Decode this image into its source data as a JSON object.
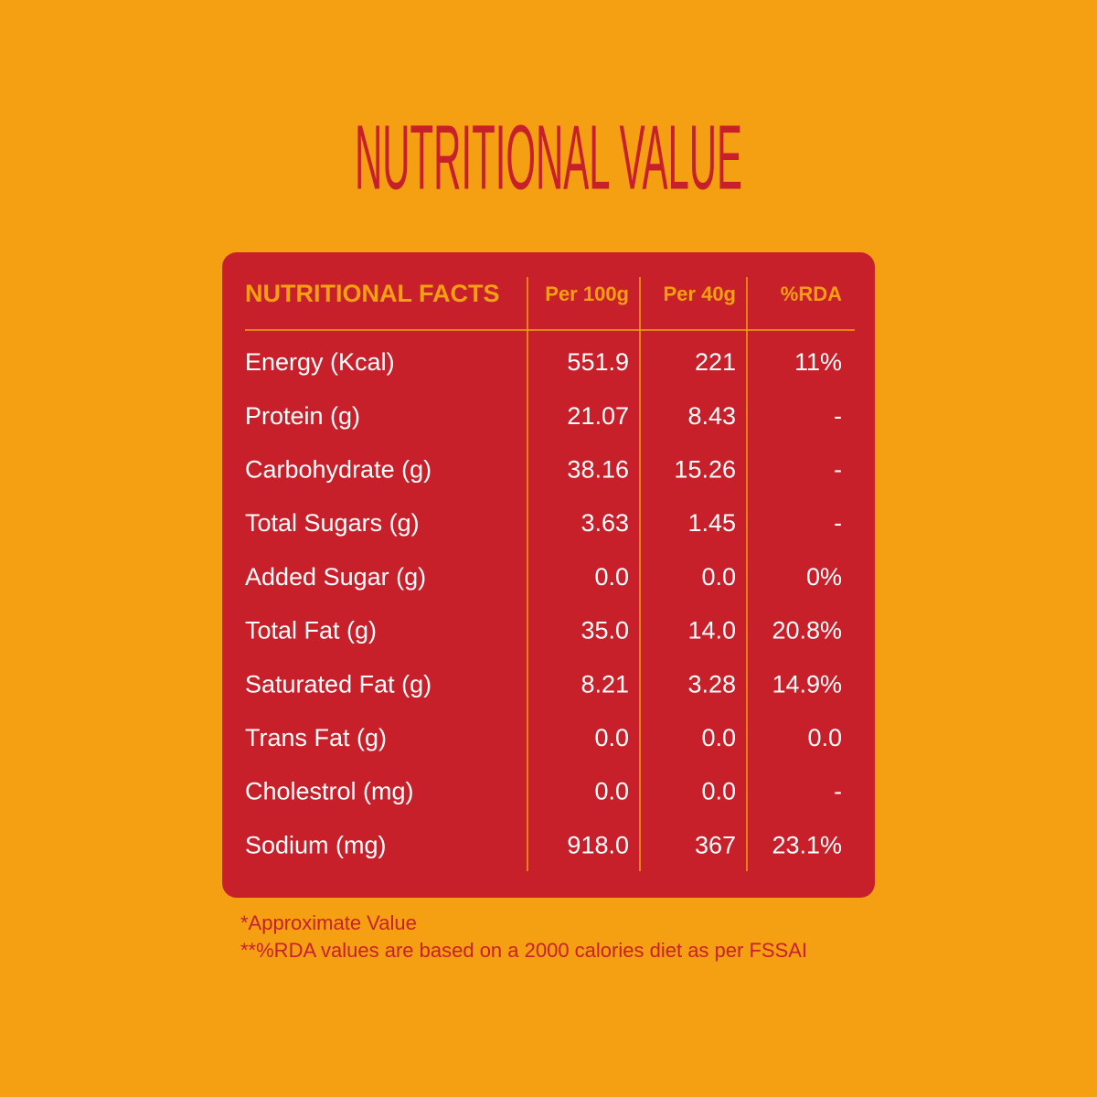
{
  "title": "NUTRITIONAL VALUE",
  "table": {
    "headers": [
      "NUTRITIONAL FACTS",
      "Per 100g",
      "Per 40g",
      "%RDA"
    ],
    "rows": [
      [
        "Energy (Kcal)",
        "551.9",
        "221",
        "11%"
      ],
      [
        "Protein (g)",
        "21.07",
        "8.43",
        "-"
      ],
      [
        "Carbohydrate (g)",
        "38.16",
        "15.26",
        "-"
      ],
      [
        "Total Sugars (g)",
        "3.63",
        "1.45",
        "-"
      ],
      [
        "Added Sugar (g)",
        "0.0",
        "0.0",
        "0%"
      ],
      [
        "Total Fat (g)",
        "35.0",
        "14.0",
        "20.8%"
      ],
      [
        "Saturated Fat (g)",
        "8.21",
        "3.28",
        "14.9%"
      ],
      [
        "Trans Fat (g)",
        "0.0",
        "0.0",
        "0.0"
      ],
      [
        "Cholestrol (mg)",
        "0.0",
        "0.0",
        "-"
      ],
      [
        "Sodium (mg)",
        "918.0",
        "367",
        "23.1%"
      ]
    ]
  },
  "footnotes": [
    "*Approximate Value",
    "**%RDA values are based on a 2000 calories diet as per FSSAI"
  ]
}
